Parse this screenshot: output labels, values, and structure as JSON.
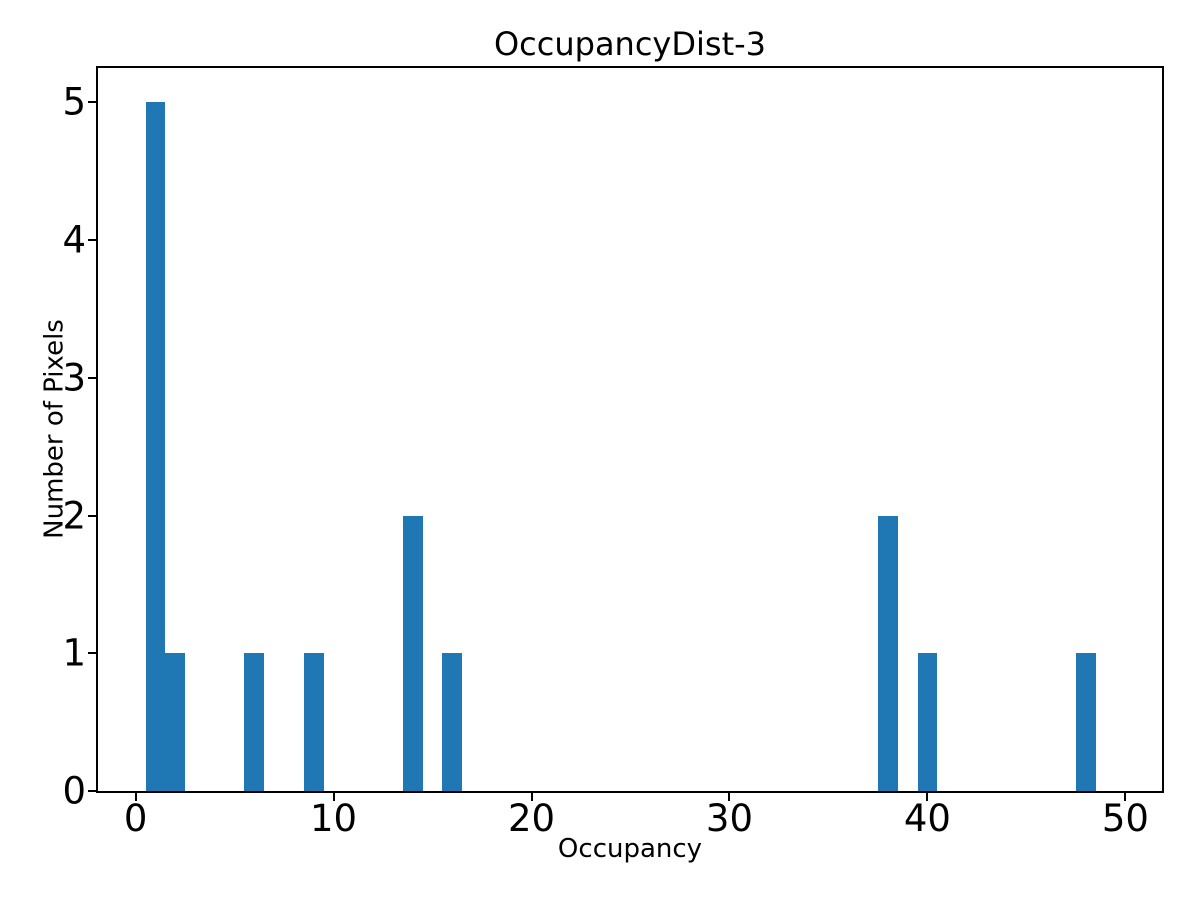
{
  "chart_data": {
    "type": "bar",
    "subtype": "histogram",
    "title": "OccupancyDist-3",
    "xlabel": "Occupancy",
    "ylabel": "Number of Pixels",
    "bar_color": "#1f77b4",
    "spine_color": "#000000",
    "background_color": "#ffffff",
    "bin_width": 1,
    "bars": [
      {
        "center": 1,
        "count": 5
      },
      {
        "center": 2,
        "count": 1
      },
      {
        "center": 6,
        "count": 1
      },
      {
        "center": 9,
        "count": 1
      },
      {
        "center": 14,
        "count": 2
      },
      {
        "center": 16,
        "count": 1
      },
      {
        "center": 38,
        "count": 2
      },
      {
        "center": 40,
        "count": 1
      },
      {
        "center": 48,
        "count": 1
      }
    ],
    "xlim": [
      -1.9,
      51.85
    ],
    "ylim": [
      0,
      5.25
    ],
    "xticks": [
      0,
      10,
      20,
      30,
      40,
      50
    ],
    "yticks": [
      0,
      1,
      2,
      3,
      4,
      5
    ],
    "grid": false,
    "legend": null
  }
}
